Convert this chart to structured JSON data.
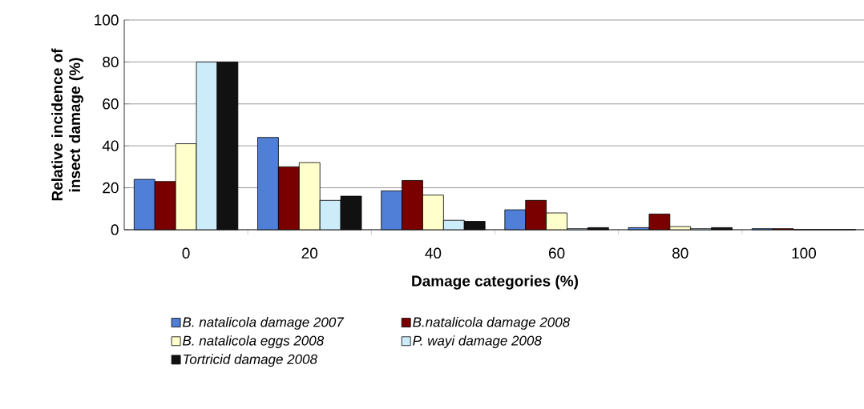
{
  "chart_data": {
    "type": "bar",
    "xlabel": "Damage categories (%)",
    "ylabel": "Relative incidence of insect damage (%)",
    "categories": [
      "0",
      "20",
      "40",
      "60",
      "80",
      "100"
    ],
    "series": [
      {
        "name": "B. natalicola damage 2007",
        "color": "#4f7fd6",
        "values": [
          24,
          44,
          18.5,
          9.5,
          1,
          0.5
        ]
      },
      {
        "name": "B.natalicola damage 2008",
        "color": "#7a0000",
        "values": [
          23,
          30,
          23.5,
          14,
          7.5,
          0.5
        ]
      },
      {
        "name": "B. natalicola eggs 2008",
        "color": "#ffffcc",
        "values": [
          41,
          32,
          16.5,
          8,
          1.5,
          0
        ]
      },
      {
        "name": "P. wayi damage 2008",
        "color": "#ccecfa",
        "values": [
          80,
          14,
          4.5,
          0.5,
          0.5,
          0
        ]
      },
      {
        "name": "Tortricid damage 2008",
        "color": "#111111",
        "values": [
          80,
          16,
          4,
          1,
          1,
          0
        ]
      }
    ],
    "ylim": [
      0,
      100
    ],
    "yticks": [
      0,
      20,
      40,
      60,
      80,
      100
    ],
    "grid": "y",
    "legend": "bottom"
  }
}
